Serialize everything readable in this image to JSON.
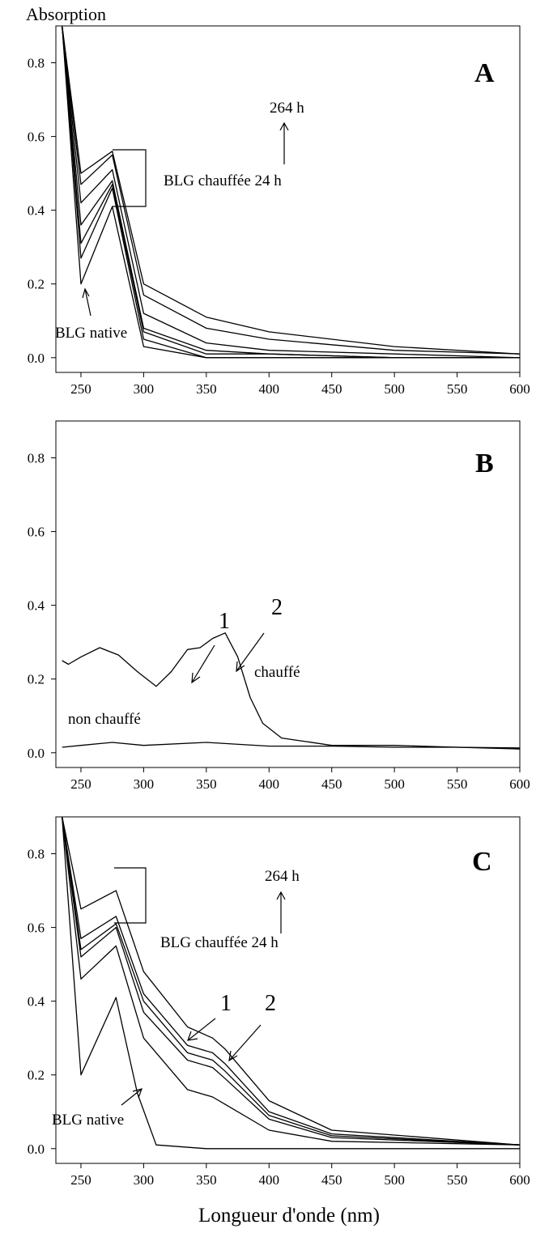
{
  "chart_data": [
    {
      "type": "line",
      "panel": "A",
      "ylabel": "Absorption",
      "xlabel": "",
      "xlim": [
        230,
        600
      ],
      "ylim": [
        -0.04,
        0.9
      ],
      "xticks": [
        250,
        300,
        350,
        400,
        450,
        500,
        550,
        600
      ],
      "yticks": [
        0.0,
        0.2,
        0.4,
        0.6,
        0.8
      ],
      "annotations": [
        "264 h",
        "BLG chauffée 24 h",
        "BLG native"
      ],
      "series": [
        {
          "x": [
            235,
            250,
            275,
            300,
            350,
            400,
            500,
            600
          ],
          "y": [
            0.9,
            0.2,
            0.41,
            0.03,
            0.0,
            0.0,
            0.0,
            0.0
          ]
        },
        {
          "x": [
            235,
            250,
            275,
            300,
            350,
            400,
            500,
            600
          ],
          "y": [
            0.9,
            0.27,
            0.46,
            0.05,
            0.0,
            0.0,
            0.0,
            0.0
          ]
        },
        {
          "x": [
            235,
            250,
            275,
            300,
            350,
            400,
            500,
            600
          ],
          "y": [
            0.9,
            0.31,
            0.47,
            0.07,
            0.01,
            0.01,
            0.0,
            0.0
          ]
        },
        {
          "x": [
            235,
            250,
            275,
            300,
            350,
            400,
            500,
            600
          ],
          "y": [
            0.9,
            0.36,
            0.48,
            0.08,
            0.02,
            0.01,
            0.0,
            0.0
          ]
        },
        {
          "x": [
            235,
            250,
            275,
            300,
            350,
            400,
            500,
            600
          ],
          "y": [
            0.9,
            0.42,
            0.51,
            0.12,
            0.04,
            0.02,
            0.01,
            0.0
          ]
        },
        {
          "x": [
            235,
            250,
            275,
            300,
            350,
            400,
            500,
            600
          ],
          "y": [
            0.9,
            0.47,
            0.55,
            0.17,
            0.08,
            0.05,
            0.02,
            0.01
          ]
        },
        {
          "x": [
            235,
            250,
            275,
            300,
            350,
            400,
            500,
            600
          ],
          "y": [
            0.9,
            0.5,
            0.56,
            0.2,
            0.11,
            0.07,
            0.03,
            0.01
          ]
        }
      ]
    },
    {
      "type": "line",
      "panel": "B",
      "xlim": [
        230,
        600
      ],
      "ylim": [
        -0.04,
        0.9
      ],
      "xticks": [
        250,
        300,
        350,
        400,
        450,
        500,
        550,
        600
      ],
      "yticks": [
        0.0,
        0.2,
        0.4,
        0.6,
        0.8
      ],
      "annotations": [
        "1",
        "2"
      ],
      "series": [
        {
          "name": "chauffé",
          "x": [
            235,
            240,
            250,
            265,
            280,
            295,
            310,
            322,
            335,
            345,
            355,
            365,
            375,
            385,
            395,
            410,
            430,
            450,
            500,
            550,
            600
          ],
          "y": [
            0.25,
            0.24,
            0.26,
            0.285,
            0.265,
            0.22,
            0.18,
            0.22,
            0.28,
            0.285,
            0.31,
            0.325,
            0.26,
            0.15,
            0.08,
            0.04,
            0.03,
            0.02,
            0.02,
            0.015,
            0.01
          ]
        },
        {
          "name": "non chauffé",
          "x": [
            235,
            250,
            275,
            300,
            350,
            400,
            450,
            500,
            550,
            600
          ],
          "y": [
            0.015,
            0.02,
            0.028,
            0.02,
            0.028,
            0.018,
            0.018,
            0.015,
            0.015,
            0.013
          ]
        }
      ]
    },
    {
      "type": "line",
      "panel": "C",
      "xlabel": "Longueur d'onde (nm)",
      "xlim": [
        230,
        600
      ],
      "ylim": [
        -0.04,
        0.9
      ],
      "xticks": [
        250,
        300,
        350,
        400,
        450,
        500,
        550,
        600
      ],
      "yticks": [
        0.0,
        0.2,
        0.4,
        0.6,
        0.8
      ],
      "annotations": [
        "264 h",
        "BLG chauffée 24 h",
        "BLG native",
        "1",
        "2"
      ],
      "series": [
        {
          "x": [
            235,
            250,
            278,
            295,
            310,
            350,
            400,
            500,
            600
          ],
          "y": [
            0.9,
            0.2,
            0.41,
            0.15,
            0.01,
            0.0,
            0.0,
            0.0,
            0.0
          ]
        },
        {
          "x": [
            235,
            250,
            278,
            300,
            335,
            355,
            365,
            400,
            450,
            600
          ],
          "y": [
            0.9,
            0.46,
            0.55,
            0.3,
            0.16,
            0.14,
            0.12,
            0.05,
            0.02,
            0.01
          ]
        },
        {
          "x": [
            235,
            250,
            278,
            300,
            335,
            355,
            365,
            400,
            450,
            600
          ],
          "y": [
            0.9,
            0.52,
            0.6,
            0.37,
            0.24,
            0.22,
            0.19,
            0.08,
            0.03,
            0.01
          ]
        },
        {
          "x": [
            235,
            250,
            278,
            300,
            335,
            355,
            365,
            400,
            450,
            600
          ],
          "y": [
            0.9,
            0.54,
            0.61,
            0.4,
            0.26,
            0.24,
            0.21,
            0.09,
            0.035,
            0.01
          ]
        },
        {
          "x": [
            235,
            250,
            278,
            300,
            335,
            355,
            365,
            400,
            450,
            600
          ],
          "y": [
            0.9,
            0.57,
            0.63,
            0.42,
            0.28,
            0.26,
            0.23,
            0.1,
            0.04,
            0.01
          ]
        },
        {
          "x": [
            235,
            250,
            278,
            300,
            335,
            355,
            365,
            400,
            450,
            600
          ],
          "y": [
            0.9,
            0.65,
            0.7,
            0.48,
            0.33,
            0.3,
            0.27,
            0.13,
            0.05,
            0.01
          ]
        }
      ]
    }
  ],
  "labels": {
    "ylabel": "Absorption",
    "xlabel": "Longueur d'onde (nm)",
    "panel_a": "A",
    "panel_b": "B",
    "panel_c": "C",
    "hours_264": "264 h",
    "heated_24h": "BLG chauffée 24 h",
    "native": "BLG native",
    "heated": "chauffé",
    "not_heated": "non chauffé",
    "peak_1": "1",
    "peak_2": "2"
  }
}
